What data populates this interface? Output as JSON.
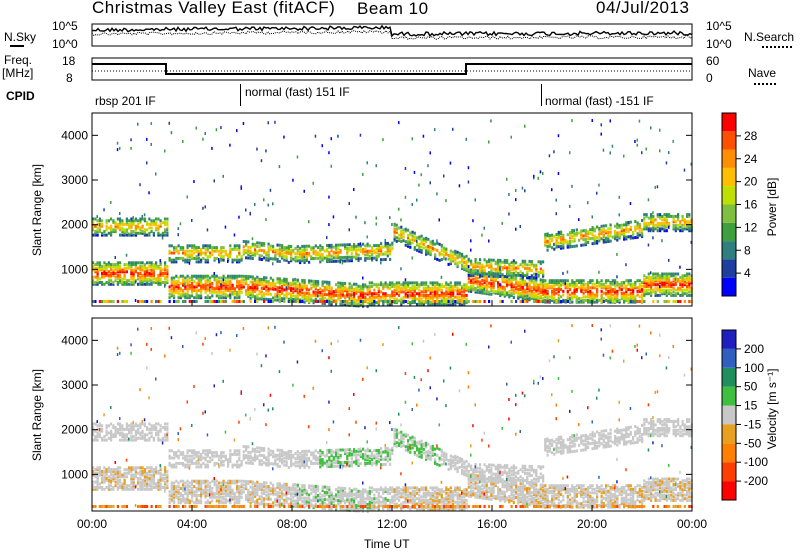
{
  "header": {
    "station": "Christmas Valley East (fitACF)",
    "beam": "Beam 10",
    "date": "04/Jul/2013"
  },
  "noise_panel": {
    "left_label": "N.Sky",
    "right_label": "N.Search",
    "left_ticks": [
      "10^5",
      "10^0"
    ],
    "right_ticks": [
      "10^5",
      "10^0"
    ]
  },
  "freq_panel": {
    "left_label_1": "Freq.",
    "left_label_2": "[MHz]",
    "right_label": "Nave",
    "left_ticks": [
      "18",
      "8"
    ],
    "right_ticks": [
      "60",
      "0"
    ]
  },
  "cpid": {
    "label": "CPID",
    "segments": [
      {
        "text": "rbsp 201 IF"
      },
      {
        "text": "normal (fast) 151 IF"
      },
      {
        "text": "normal (fast) -151 IF"
      }
    ]
  },
  "chart_data": [
    {
      "type": "heatmap",
      "title": "",
      "xlabel": "",
      "ylabel": "Slant Range [km]",
      "ylim": [
        180,
        4500
      ],
      "y_ticks": [
        "1000",
        "2000",
        "3000",
        "4000"
      ],
      "colorbar": {
        "label": "Power [dB]",
        "ticks": [
          "4",
          "8",
          "12",
          "16",
          "20",
          "24",
          "28"
        ],
        "colors": [
          "#0000ff",
          "#1f3fa0",
          "#2f7f7f",
          "#3f9f3f",
          "#7fbf3f",
          "#bfdf00",
          "#ffbf00",
          "#ff8f00",
          "#ff4f00",
          "#ff0000"
        ]
      }
    },
    {
      "type": "heatmap",
      "title": "",
      "xlabel": "Time UT",
      "ylabel": "Slant Range [km]",
      "ylim": [
        180,
        4500
      ],
      "y_ticks": [
        "1000",
        "2000",
        "3000",
        "4000"
      ],
      "colorbar": {
        "label": "Velocity [m s⁻¹]",
        "ticks": [
          "200",
          "100",
          "50",
          "15",
          "-15",
          "-50",
          "-100",
          "-200"
        ],
        "colors": [
          "#1f1fbf",
          "#2f5fbf",
          "#1f8f5f",
          "#3fbf3f",
          "#c8c8c8",
          "#e8a020",
          "#ff7f00",
          "#ff3f00",
          "#ff0000"
        ]
      }
    }
  ],
  "time_axis": {
    "label": "Time UT",
    "ticks": [
      "00:00",
      "04:00",
      "08:00",
      "12:00",
      "16:00",
      "20:00",
      "00:00"
    ]
  }
}
